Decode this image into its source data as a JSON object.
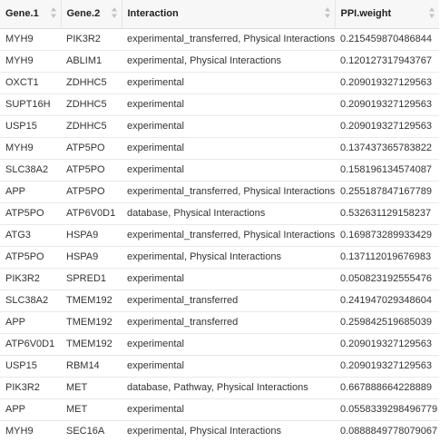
{
  "columns": [
    {
      "label": "Gene.1"
    },
    {
      "label": "Gene.2"
    },
    {
      "label": "Interaction"
    },
    {
      "label": "PPI.weight"
    }
  ],
  "rows": [
    [
      "MYH9",
      "PIK3R2",
      "experimental_transferred, Physical Interactions",
      "0.215459870486844"
    ],
    [
      "MYH9",
      "ABLIM1",
      "experimental, Physical Interactions",
      "0.120127317943767"
    ],
    [
      "OXCT1",
      "ZDHHC5",
      "experimental",
      "0.209019327129563"
    ],
    [
      "SUPT16H",
      "ZDHHC5",
      "experimental",
      "0.209019327129563"
    ],
    [
      "USP15",
      "ZDHHC5",
      "experimental",
      "0.209019327129563"
    ],
    [
      "MYH9",
      "ATP5PO",
      "experimental",
      "0.137437365783822"
    ],
    [
      "SLC38A2",
      "ATP5PO",
      "experimental",
      "0.158196134574087"
    ],
    [
      "APP",
      "ATP5PO",
      "experimental_transferred, Physical Interactions",
      "0.255187847167789"
    ],
    [
      "ATP5PO",
      "ATP6V0D1",
      "database, Physical Interactions",
      "0.532631129158237"
    ],
    [
      "ATG3",
      "HSPA9",
      "experimental_transferred, Physical Interactions",
      "0.169873289933429"
    ],
    [
      "ATP5PO",
      "HSPA9",
      "experimental, Physical Interactions",
      "0.137112019676983"
    ],
    [
      "PIK3R2",
      "SPRED1",
      "experimental",
      "0.050823192555476"
    ],
    [
      "SLC38A2",
      "TMEM192",
      "experimental_transferred",
      "0.241947029348604"
    ],
    [
      "APP",
      "TMEM192",
      "experimental_transferred",
      "0.259842519685039"
    ],
    [
      "ATP6V0D1",
      "TMEM192",
      "experimental",
      "0.209019327129563"
    ],
    [
      "USP15",
      "RBM14",
      "experimental",
      "0.209019327129563"
    ],
    [
      "PIK3R2",
      "MET",
      "database, Pathway, Physical Interactions",
      "0.667888664228889"
    ],
    [
      "APP",
      "MET",
      "experimental",
      "0.0558339298496779"
    ],
    [
      "MYH9",
      "SEC16A",
      "experimental, Physical Interactions",
      "0.0888849778079067"
    ]
  ],
  "icons": {
    "sort": "sort-arrows-icon"
  },
  "colors": {
    "header_bg": "#f7f7f7",
    "row_border": "#e9e9e9",
    "text": "#333333",
    "sort_icon": "#c4c4c4"
  }
}
